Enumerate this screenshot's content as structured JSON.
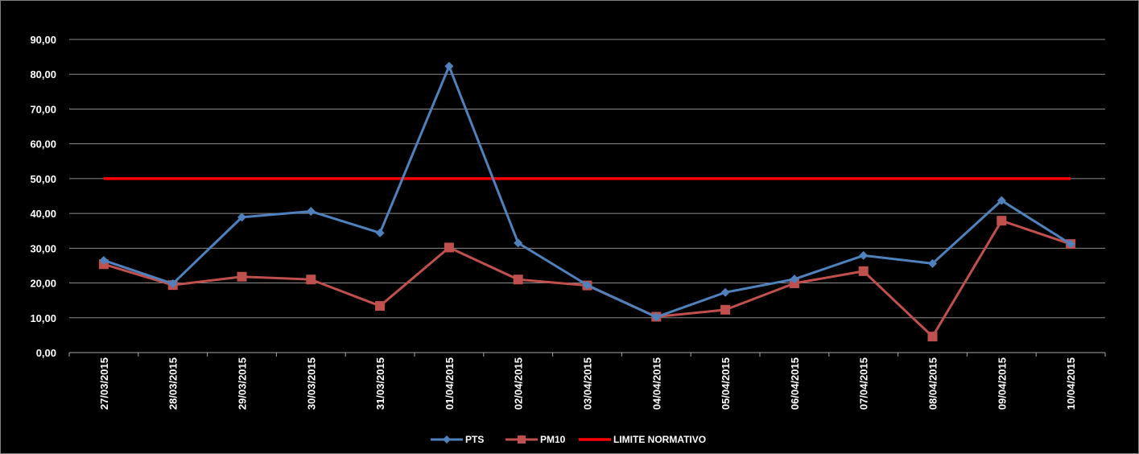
{
  "chart_data": {
    "type": "line",
    "categories": [
      "27/03/2015",
      "28/03/2015",
      "29/03/2015",
      "30/03/2015",
      "31/03/2015",
      "01/04/2015",
      "02/04/2015",
      "03/04/2015",
      "04/04/2015",
      "05/04/2015",
      "06/04/2015",
      "07/04/2015",
      "08/04/2015",
      "09/04/2015",
      "10/04/2015"
    ],
    "series": [
      {
        "name": "PTS",
        "color": "#4f81bd",
        "marker": "diamond",
        "values": [
          26.5,
          19.8,
          38.9,
          40.6,
          34.4,
          82.3,
          31.5,
          19.4,
          10.2,
          17.3,
          21.1,
          27.9,
          25.6,
          43.7,
          31.2
        ]
      },
      {
        "name": "PM10",
        "color": "#c0504d",
        "marker": "square",
        "values": [
          25.4,
          19.4,
          21.8,
          21.0,
          13.4,
          30.2,
          21.0,
          19.3,
          10.3,
          12.3,
          19.9,
          23.4,
          4.6,
          37.9,
          31.2
        ]
      },
      {
        "name": "LIMITE NORMATIVO",
        "color": "#ff0000",
        "marker": "none",
        "values": [
          50,
          50,
          50,
          50,
          50,
          50,
          50,
          50,
          50,
          50,
          50,
          50,
          50,
          50,
          50
        ]
      }
    ],
    "yticks": [
      "0,00",
      "10,00",
      "20,00",
      "30,00",
      "40,00",
      "50,00",
      "60,00",
      "70,00",
      "80,00",
      "90,00"
    ],
    "ylim": [
      0,
      90
    ],
    "grid": true,
    "legend_position": "bottom",
    "title": "",
    "xlabel": "",
    "ylabel": ""
  }
}
